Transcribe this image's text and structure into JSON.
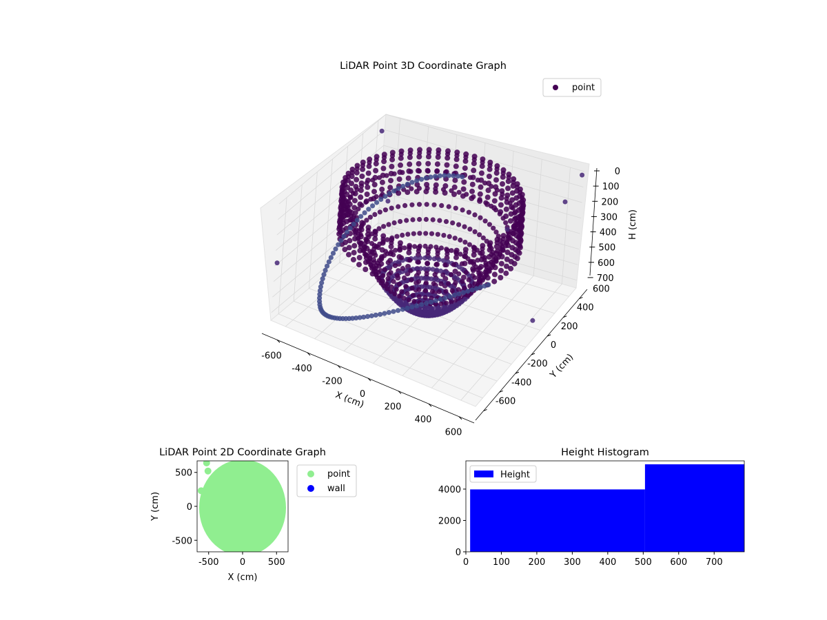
{
  "chart_data": [
    {
      "type": "scatter3d",
      "title": "LiDAR Point 3D Coordinate Graph",
      "xlabel": "X (cm)",
      "ylabel": "Y (cm)",
      "zlabel": "H (cm)",
      "xlim": [
        -700,
        700
      ],
      "ylim": [
        -700,
        700
      ],
      "zlim": [
        0,
        750
      ],
      "z_inverted": true,
      "xticks": [
        -600,
        -400,
        -200,
        0,
        200,
        400,
        600
      ],
      "yticks": [
        -600,
        -400,
        -200,
        0,
        200,
        400,
        600
      ],
      "zticks": [
        0,
        100,
        200,
        300,
        400,
        500,
        600,
        700
      ],
      "legend": {
        "placement": "upper-right",
        "entries": [
          "point"
        ]
      },
      "grid": true,
      "colormap": [
        "#440154",
        "#482878",
        "#3e4a89"
      ],
      "description_shape": "bowl-shaped point cloud: points near center sit at low H (~700 cm depth axis), ring of points at the rim sits at H ~0-100 cm; a long arc of points sweeps around the front"
    },
    {
      "type": "scatter",
      "title": "LiDAR Point 2D Coordinate Graph",
      "xlabel": "X (cm)",
      "ylabel": "Y (cm)",
      "xlim": [
        -670,
        670
      ],
      "ylim": [
        -670,
        670
      ],
      "xticks": [
        -500,
        0,
        500
      ],
      "yticks": [
        -500,
        0,
        500
      ],
      "legend": {
        "placement": "outside-right",
        "entries": [
          "point",
          "wall"
        ]
      },
      "series": [
        {
          "name": "point",
          "color": "#90ee90",
          "region": "filled disc centered near (0, 0) with radius ~650",
          "outliers": [
            [
              -530,
              640
            ],
            [
              -510,
              520
            ],
            [
              -610,
              230
            ]
          ]
        },
        {
          "name": "wall",
          "color": "#0000ff",
          "values": []
        }
      ]
    },
    {
      "type": "bar",
      "title": "Height Histogram",
      "xlabel": "",
      "ylabel": "",
      "xlim": [
        0,
        785
      ],
      "ylim": [
        0,
        5800
      ],
      "xticks": [
        0,
        100,
        200,
        300,
        400,
        500,
        600,
        700
      ],
      "yticks": [
        0,
        2000,
        4000
      ],
      "legend": {
        "placement": "upper-left",
        "entries": [
          "Height"
        ]
      },
      "series": [
        {
          "name": "Height",
          "color": "#0000ff",
          "bins": [
            {
              "from": 12,
              "to": 505,
              "count": 3980
            },
            {
              "from": 505,
              "to": 785,
              "count": 5580
            }
          ]
        }
      ]
    }
  ]
}
